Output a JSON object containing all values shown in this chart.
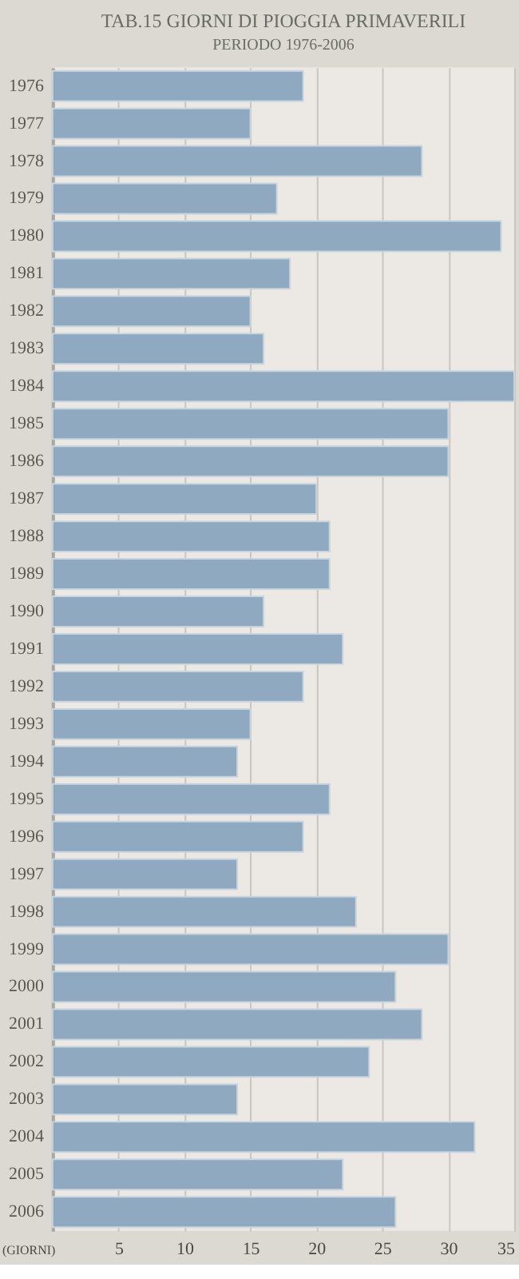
{
  "chart_data": {
    "type": "bar",
    "orientation": "horizontal",
    "title": "TAB.15  GIORNI DI PIOGGIA PRIMAVERILI",
    "subtitle": "PERIODO 1976-2006",
    "xlabel": "(GIORNI)",
    "categories": [
      "1976",
      "1977",
      "1978",
      "1979",
      "1980",
      "1981",
      "1982",
      "1983",
      "1984",
      "1985",
      "1986",
      "1987",
      "1988",
      "1989",
      "1990",
      "1991",
      "1992",
      "1993",
      "1994",
      "1995",
      "1996",
      "1997",
      "1998",
      "1999",
      "2000",
      "2001",
      "2002",
      "2003",
      "2004",
      "2005",
      "2006"
    ],
    "values": [
      19,
      15,
      28,
      17,
      34,
      18,
      15,
      16,
      35,
      30,
      30,
      20,
      21,
      21,
      16,
      22,
      19,
      15,
      14,
      21,
      19,
      14,
      23,
      30,
      26,
      28,
      24,
      14,
      32,
      22,
      26
    ],
    "color": "#8fa9c0",
    "xlim": [
      0,
      35
    ],
    "xticks": [
      5,
      10,
      15,
      20,
      25,
      30,
      35
    ],
    "grid": "x"
  }
}
